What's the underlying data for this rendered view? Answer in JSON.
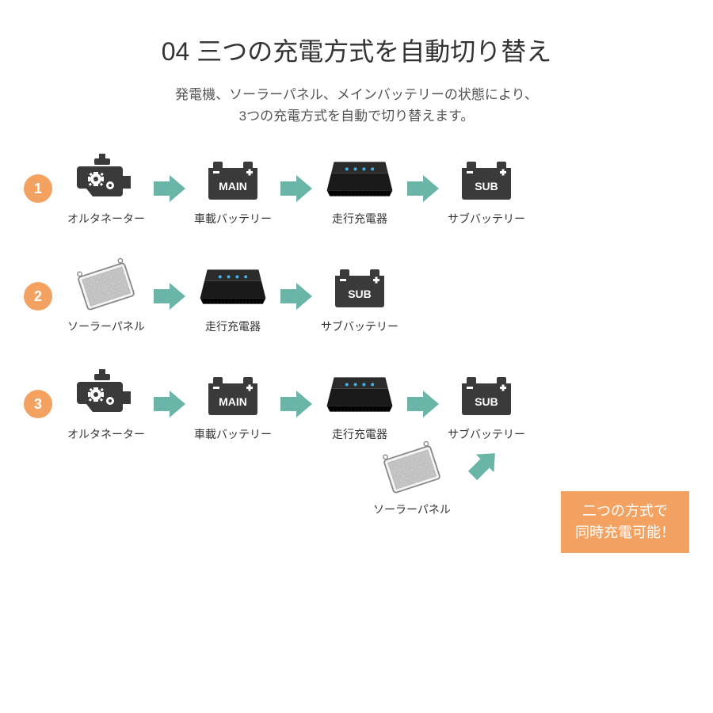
{
  "title": "04 三つの充電方式を自動切り替え",
  "subtitle_line1": "発電機、ソーラーパネル、メインバッテリーの状態により、",
  "subtitle_line2": "3つの充電方式を自動で切り替えます。",
  "colors": {
    "badge_bg": "#f4a261",
    "badge_text": "#ffffff",
    "arrow_fill": "#6ab5a8",
    "icon_dark": "#3a3a3a",
    "icon_black": "#1a1a1a",
    "text": "#333333",
    "callout_bg": "#f4a261",
    "callout_text": "#ffffff",
    "main_label_bg": "#3a3a3a",
    "main_label_text": "#ffffff",
    "sub_label_bg": "#3a3a3a",
    "sub_label_text": "#ffffff"
  },
  "labels": {
    "alternator": "オルタネーター",
    "main_battery": "車載バッテリー",
    "charger": "走行充電器",
    "sub_battery": "サブバッテリー",
    "solar": "ソーラーパネル",
    "main_text": "MAIN",
    "sub_text": "SUB"
  },
  "rows": [
    {
      "num": "1",
      "sequence": [
        "alternator",
        "arrow",
        "main_battery",
        "arrow",
        "charger",
        "arrow",
        "sub_battery"
      ]
    },
    {
      "num": "2",
      "sequence": [
        "solar",
        "arrow",
        "charger",
        "arrow",
        "sub_battery"
      ]
    },
    {
      "num": "3",
      "sequence": [
        "alternator",
        "arrow",
        "main_battery",
        "arrow",
        "charger",
        "arrow",
        "sub_battery"
      ],
      "extra_solar_feeds_charger": true
    }
  ],
  "callout_line1": "二つの方式で",
  "callout_line2": "同時充電可能！"
}
